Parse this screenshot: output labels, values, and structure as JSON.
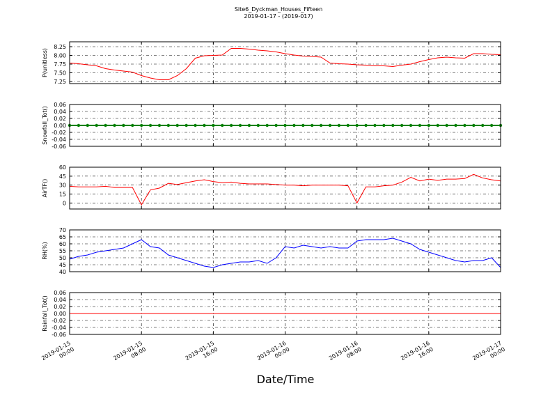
{
  "figure": {
    "title": "Site6_Dyckman_Houses_Fifteen",
    "subtitle": "2019-01-17 - (2019-017)",
    "xlabel": "Date/Time",
    "xlim": [
      "2019-01-15 00:00",
      "2019-01-17 00:00"
    ],
    "xticks": [
      "2019-01-15 00:00",
      "2019-01-15 08:00",
      "2019-01-15 16:00",
      "2019-01-16 00:00",
      "2019-01-16 08:00",
      "2019-01-16 16:00",
      "2019-01-17 00:00"
    ],
    "x": [
      "2019-01-15 00:00",
      "2019-01-15 01:00",
      "2019-01-15 02:00",
      "2019-01-15 03:00",
      "2019-01-15 04:00",
      "2019-01-15 05:00",
      "2019-01-15 06:00",
      "2019-01-15 07:00",
      "2019-01-15 08:00",
      "2019-01-15 09:00",
      "2019-01-15 10:00",
      "2019-01-15 11:00",
      "2019-01-15 12:00",
      "2019-01-15 13:00",
      "2019-01-15 14:00",
      "2019-01-15 15:00",
      "2019-01-15 16:00",
      "2019-01-15 17:00",
      "2019-01-15 18:00",
      "2019-01-15 19:00",
      "2019-01-15 20:00",
      "2019-01-15 21:00",
      "2019-01-15 22:00",
      "2019-01-15 23:00",
      "2019-01-16 00:00",
      "2019-01-16 01:00",
      "2019-01-16 02:00",
      "2019-01-16 03:00",
      "2019-01-16 04:00",
      "2019-01-16 05:00",
      "2019-01-16 06:00",
      "2019-01-16 07:00",
      "2019-01-16 08:00",
      "2019-01-16 09:00",
      "2019-01-16 10:00",
      "2019-01-16 11:00",
      "2019-01-16 12:00",
      "2019-01-16 13:00",
      "2019-01-16 14:00",
      "2019-01-16 15:00",
      "2019-01-16 16:00",
      "2019-01-16 17:00",
      "2019-01-16 18:00",
      "2019-01-16 19:00",
      "2019-01-16 20:00",
      "2019-01-16 21:00",
      "2019-01-16 22:00",
      "2019-01-16 23:00",
      "2019-01-17 00:00"
    ]
  },
  "chart_data": [
    {
      "type": "line",
      "ylabel": "P(unitless)",
      "ylim": [
        7.19,
        8.39
      ],
      "grid": true,
      "yticks": [
        7.25,
        {
          "value": 7.5,
          "label": "7.50"
        },
        7.75,
        {
          "value": 8.0,
          "label": "8.00"
        },
        8.25
      ],
      "series": [
        {
          "color": "#ff0000",
          "values": [
            7.78,
            7.76,
            7.73,
            7.7,
            7.62,
            7.58,
            7.55,
            7.52,
            7.42,
            7.35,
            7.3,
            7.3,
            7.42,
            7.62,
            7.92,
            7.99,
            8.0,
            8.01,
            8.2,
            8.2,
            8.18,
            8.15,
            8.13,
            8.1,
            8.05,
            8.01,
            7.98,
            7.97,
            7.95,
            7.78,
            7.76,
            7.75,
            7.73,
            7.72,
            7.7,
            7.7,
            7.68,
            7.72,
            7.75,
            7.82,
            7.88,
            7.93,
            7.95,
            7.93,
            7.92,
            8.05,
            8.05,
            8.03,
            8.02
          ]
        }
      ]
    },
    {
      "type": "line",
      "ylabel": "Snowfall_Tot()",
      "ylim": [
        -0.06,
        0.06
      ],
      "grid": true,
      "yticks": [
        -0.06,
        -0.04,
        -0.02,
        {
          "value": 0,
          "label": "0.00"
        },
        0.02,
        0.04,
        0.06
      ],
      "series": [
        {
          "color": "#008000",
          "marker": "o",
          "values": [
            0,
            0,
            0,
            0,
            0,
            0,
            0,
            0,
            0,
            0,
            0,
            0,
            0,
            0,
            0,
            0,
            0,
            0,
            0,
            0,
            0,
            0,
            0,
            0,
            0,
            0,
            0,
            0,
            0,
            0,
            0,
            0,
            0,
            0,
            0,
            0,
            0,
            0,
            0,
            0,
            0,
            0,
            0,
            0,
            0,
            0,
            0,
            0,
            0
          ]
        }
      ]
    },
    {
      "type": "line",
      "ylabel": "AirTF()",
      "ylim": [
        -10,
        60
      ],
      "grid": true,
      "yticks": [
        0,
        15,
        30,
        45,
        60
      ],
      "series": [
        {
          "color": "#ff0000",
          "values": [
            28,
            27,
            27,
            27,
            28,
            26,
            26,
            26,
            -3,
            22,
            25,
            33,
            31,
            34,
            37,
            39,
            36,
            34,
            35,
            33,
            32,
            32,
            32,
            31,
            30,
            30,
            29,
            30,
            30,
            30,
            30,
            29,
            0,
            27,
            27,
            29,
            30,
            35,
            43,
            37,
            40,
            38,
            40,
            40,
            41,
            48,
            42,
            39,
            37
          ]
        }
      ]
    },
    {
      "type": "line",
      "ylabel": "RH(%)",
      "ylim": [
        40,
        70
      ],
      "grid": true,
      "yticks": [
        40,
        45,
        50,
        55,
        60,
        65,
        70
      ],
      "series": [
        {
          "color": "#0000ff",
          "values": [
            49,
            51,
            52,
            54,
            55,
            56,
            57,
            60,
            63,
            58,
            57,
            52,
            50,
            48,
            46,
            44,
            43,
            45,
            46,
            47,
            47,
            48,
            46,
            50,
            58,
            57,
            59,
            58,
            57,
            58,
            57,
            57,
            62,
            63,
            63,
            63,
            64,
            62,
            60,
            56,
            54,
            52,
            50,
            48,
            47,
            48,
            48,
            50,
            43
          ]
        }
      ]
    },
    {
      "type": "line",
      "ylabel": "Rainfall_Tot()",
      "ylim": [
        -0.06,
        0.06
      ],
      "grid": true,
      "yticks": [
        -0.06,
        -0.04,
        -0.02,
        {
          "value": 0,
          "label": "0.00"
        },
        0.02,
        0.04,
        0.06
      ],
      "series": [
        {
          "color": "#ff0000",
          "values": [
            0,
            0,
            0,
            0,
            0,
            0,
            0,
            0,
            0,
            0,
            0,
            0,
            0,
            0,
            0,
            0,
            0,
            0,
            0,
            0,
            0,
            0,
            0,
            0,
            0,
            0,
            0,
            0,
            0,
            0,
            0,
            0,
            0,
            0,
            0,
            0,
            0,
            0,
            0,
            0,
            0,
            0,
            0,
            0,
            0,
            0,
            0,
            0,
            0
          ]
        }
      ]
    }
  ]
}
